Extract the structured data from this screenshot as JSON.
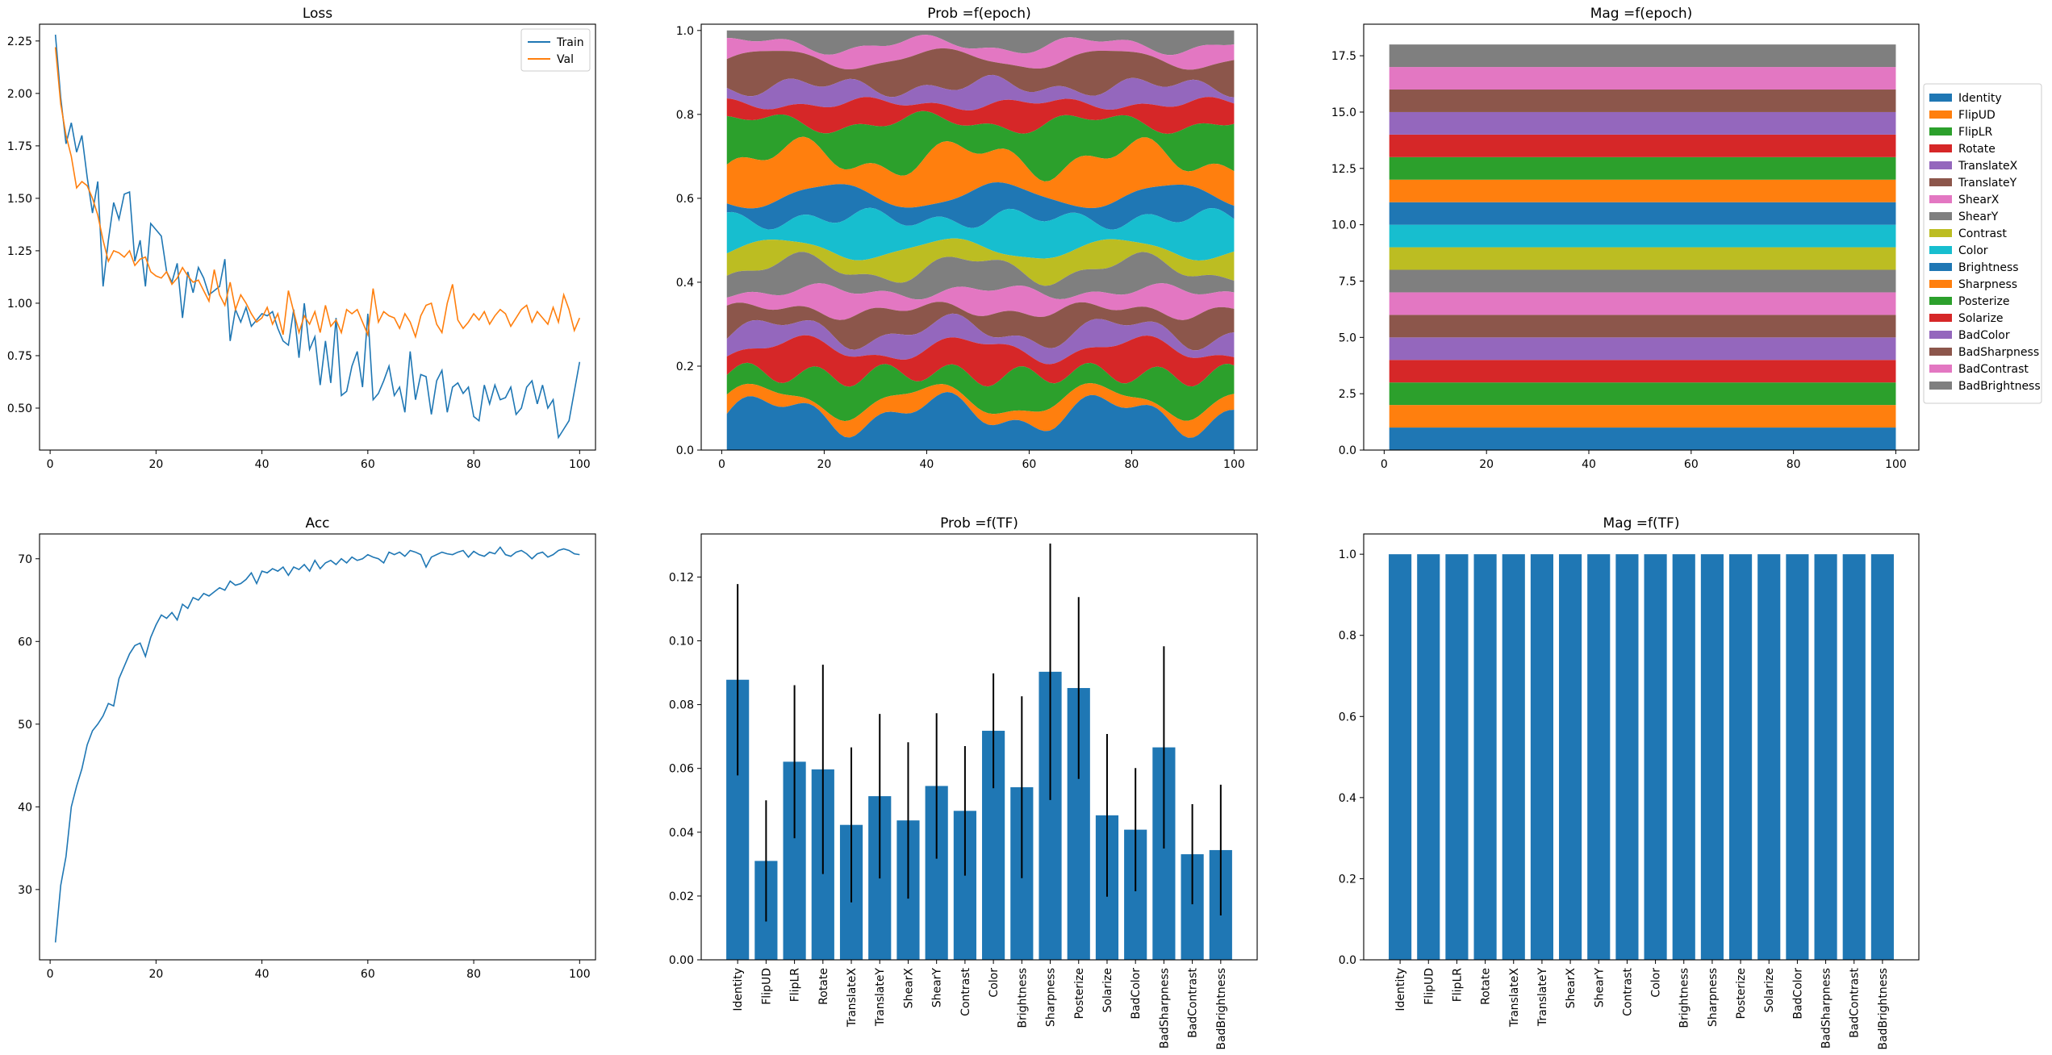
{
  "figure": {
    "colors": [
      "#1f77b4",
      "#ff7f0e",
      "#2ca02c",
      "#d62728",
      "#9467bd",
      "#8c564b",
      "#e377c2",
      "#7f7f7f",
      "#bcbd22",
      "#17becf"
    ],
    "black": "#000000"
  },
  "chart_data": [
    {
      "id": "loss",
      "type": "line",
      "title": "Loss",
      "xlim": [
        -2,
        103
      ],
      "ylim": [
        0.3,
        2.33
      ],
      "xticks": [
        0,
        20,
        40,
        60,
        80,
        100
      ],
      "yticks": [
        0.5,
        0.75,
        1.0,
        1.25,
        1.5,
        1.75,
        2.0,
        2.25
      ],
      "ytick_labels": [
        "0.50",
        "0.75",
        "1.00",
        "1.25",
        "1.50",
        "1.75",
        "2.00",
        "2.25"
      ],
      "legend": "upper right",
      "series": [
        {
          "name": "Train",
          "x_start": 1,
          "values": [
            2.28,
            1.98,
            1.76,
            1.86,
            1.72,
            1.8,
            1.6,
            1.43,
            1.58,
            1.08,
            1.3,
            1.48,
            1.4,
            1.52,
            1.53,
            1.2,
            1.3,
            1.08,
            1.38,
            1.35,
            1.32,
            1.15,
            1.1,
            1.19,
            0.93,
            1.15,
            1.05,
            1.17,
            1.12,
            1.04,
            1.06,
            1.08,
            1.21,
            0.82,
            0.97,
            0.91,
            0.98,
            0.89,
            0.92,
            0.95,
            0.94,
            0.96,
            0.88,
            0.82,
            0.8,
            0.97,
            0.74,
            1.0,
            0.78,
            0.84,
            0.61,
            0.82,
            0.62,
            0.93,
            0.56,
            0.58,
            0.7,
            0.77,
            0.6,
            0.95,
            0.54,
            0.57,
            0.63,
            0.7,
            0.56,
            0.6,
            0.48,
            0.77,
            0.54,
            0.66,
            0.65,
            0.47,
            0.63,
            0.68,
            0.48,
            0.6,
            0.62,
            0.57,
            0.6,
            0.46,
            0.44,
            0.61,
            0.52,
            0.61,
            0.54,
            0.55,
            0.6,
            0.47,
            0.5,
            0.6,
            0.63,
            0.52,
            0.61,
            0.5,
            0.54,
            0.36,
            0.4,
            0.44,
            0.58,
            0.72
          ]
        },
        {
          "name": "Val",
          "x_start": 1,
          "values": [
            2.22,
            1.95,
            1.8,
            1.7,
            1.55,
            1.58,
            1.56,
            1.5,
            1.42,
            1.3,
            1.2,
            1.25,
            1.24,
            1.22,
            1.25,
            1.18,
            1.21,
            1.22,
            1.15,
            1.13,
            1.12,
            1.15,
            1.09,
            1.12,
            1.17,
            1.13,
            1.1,
            1.11,
            1.06,
            1.01,
            1.16,
            1.04,
            0.99,
            1.1,
            0.97,
            1.04,
            1.0,
            0.95,
            0.91,
            0.93,
            0.98,
            0.9,
            0.95,
            0.85,
            1.06,
            0.96,
            0.86,
            0.94,
            0.9,
            0.96,
            0.86,
            0.99,
            0.89,
            0.92,
            0.86,
            0.97,
            0.95,
            0.97,
            0.91,
            0.85,
            1.07,
            0.91,
            0.96,
            0.94,
            0.93,
            0.88,
            0.95,
            0.91,
            0.84,
            0.94,
            0.99,
            1.0,
            0.9,
            0.86,
            1.0,
            1.09,
            0.92,
            0.88,
            0.91,
            0.95,
            0.92,
            0.96,
            0.9,
            0.94,
            0.97,
            0.95,
            0.89,
            0.93,
            0.97,
            0.99,
            0.91,
            0.96,
            0.93,
            0.9,
            0.98,
            0.91,
            1.04,
            0.97,
            0.87,
            0.93
          ]
        }
      ]
    },
    {
      "id": "acc",
      "type": "line",
      "title": "Acc",
      "xlim": [
        -2,
        103
      ],
      "ylim": [
        21.5,
        73
      ],
      "xticks": [
        0,
        20,
        40,
        60,
        80,
        100
      ],
      "yticks": [
        30,
        40,
        50,
        60,
        70
      ],
      "ytick_labels": [
        "30",
        "40",
        "50",
        "60",
        "70"
      ],
      "series": [
        {
          "name": "",
          "x_start": 1,
          "values": [
            23.6,
            30.5,
            34.0,
            40.0,
            42.5,
            44.6,
            47.5,
            49.2,
            50.0,
            51.0,
            52.5,
            52.2,
            55.5,
            57.0,
            58.5,
            59.5,
            59.8,
            58.2,
            60.5,
            62.0,
            63.2,
            62.8,
            63.5,
            62.6,
            64.5,
            64.0,
            65.3,
            65.0,
            65.8,
            65.5,
            66.0,
            66.5,
            66.2,
            67.3,
            66.8,
            67.0,
            67.5,
            68.3,
            67.0,
            68.5,
            68.3,
            68.8,
            68.5,
            69.0,
            68.0,
            69.0,
            68.7,
            69.3,
            68.5,
            69.8,
            68.8,
            69.5,
            69.8,
            69.3,
            70.0,
            69.5,
            70.2,
            69.8,
            70.0,
            70.5,
            70.2,
            70.0,
            69.5,
            70.8,
            70.5,
            70.8,
            70.3,
            71.0,
            70.8,
            70.5,
            69.0,
            70.2,
            70.5,
            70.8,
            70.6,
            70.5,
            70.8,
            71.0,
            70.2,
            70.9,
            70.5,
            70.3,
            70.8,
            70.6,
            71.4,
            70.5,
            70.3,
            70.8,
            71.0,
            70.6,
            70.0,
            70.6,
            70.8,
            70.2,
            70.5,
            71.0,
            71.2,
            71.0,
            70.6,
            70.5
          ]
        }
      ]
    },
    {
      "id": "prob_epoch",
      "type": "area",
      "title": "Prob =f(epoch)",
      "xlim": [
        -4,
        104.5
      ],
      "ylim": [
        0,
        1.015
      ],
      "xticks": [
        0,
        20,
        40,
        60,
        80,
        100
      ],
      "yticks": [
        0,
        0.2,
        0.4,
        0.6,
        0.8,
        1.0
      ],
      "ytick_labels": [
        "0.0",
        "0.2",
        "0.4",
        "0.6",
        "0.8",
        "1.0"
      ],
      "x_start": 1,
      "n_epochs": 100,
      "normalized": true,
      "series": [
        {
          "name": "Identity",
          "mean": 0.088
        },
        {
          "name": "FlipUD",
          "mean": 0.031
        },
        {
          "name": "FlipLR",
          "mean": 0.062
        },
        {
          "name": "Rotate",
          "mean": 0.06
        },
        {
          "name": "TranslateX",
          "mean": 0.042
        },
        {
          "name": "TranslateY",
          "mean": 0.051
        },
        {
          "name": "ShearX",
          "mean": 0.044
        },
        {
          "name": "ShearY",
          "mean": 0.055
        },
        {
          "name": "Contrast",
          "mean": 0.047
        },
        {
          "name": "Color",
          "mean": 0.072
        },
        {
          "name": "Brightness",
          "mean": 0.054
        },
        {
          "name": "Sharpness",
          "mean": 0.09
        },
        {
          "name": "Posterize",
          "mean": 0.085
        },
        {
          "name": "Solarize",
          "mean": 0.045
        },
        {
          "name": "BadColor",
          "mean": 0.041
        },
        {
          "name": "BadSharpness",
          "mean": 0.067
        },
        {
          "name": "BadContrast",
          "mean": 0.033
        },
        {
          "name": "BadBrightness",
          "mean": 0.034
        }
      ]
    },
    {
      "id": "mag_epoch",
      "type": "area",
      "title": "Mag =f(epoch)",
      "xlim": [
        -4,
        104.5
      ],
      "ylim": [
        0,
        18.9
      ],
      "xticks": [
        0,
        20,
        40,
        60,
        80,
        100
      ],
      "yticks": [
        0,
        2.5,
        5,
        7.5,
        10,
        12.5,
        15,
        17.5
      ],
      "ytick_labels": [
        "0.0",
        "2.5",
        "5.0",
        "7.5",
        "10.0",
        "12.5",
        "15.0",
        "17.5"
      ],
      "x_start": 1,
      "x_end": 100,
      "legend": "right outside",
      "series": [
        {
          "name": "Identity",
          "value": 1.0
        },
        {
          "name": "FlipUD",
          "value": 1.0
        },
        {
          "name": "FlipLR",
          "value": 1.0
        },
        {
          "name": "Rotate",
          "value": 1.0
        },
        {
          "name": "TranslateX",
          "value": 1.0
        },
        {
          "name": "TranslateY",
          "value": 1.0
        },
        {
          "name": "ShearX",
          "value": 1.0
        },
        {
          "name": "ShearY",
          "value": 1.0
        },
        {
          "name": "Contrast",
          "value": 1.0
        },
        {
          "name": "Color",
          "value": 1.0
        },
        {
          "name": "Brightness",
          "value": 1.0
        },
        {
          "name": "Sharpness",
          "value": 1.0
        },
        {
          "name": "Posterize",
          "value": 1.0
        },
        {
          "name": "Solarize",
          "value": 1.0
        },
        {
          "name": "BadColor",
          "value": 1.0
        },
        {
          "name": "BadSharpness",
          "value": 1.0
        },
        {
          "name": "BadContrast",
          "value": 1.0
        },
        {
          "name": "BadBrightness",
          "value": 1.0
        }
      ]
    },
    {
      "id": "prob_tf",
      "type": "bar",
      "title": "Prob =f(TF)",
      "ylim": [
        0,
        0.1335
      ],
      "yticks": [
        0,
        0.02,
        0.04,
        0.06,
        0.08,
        0.1,
        0.12
      ],
      "ytick_labels": [
        "0.00",
        "0.02",
        "0.04",
        "0.06",
        "0.08",
        "0.10",
        "0.12"
      ],
      "categories": [
        "Identity",
        "FlipUD",
        "FlipLR",
        "Rotate",
        "TranslateX",
        "TranslateY",
        "ShearX",
        "ShearY",
        "Contrast",
        "Color",
        "Brightness",
        "Sharpness",
        "Posterize",
        "Solarize",
        "BadColor",
        "BadSharpness",
        "BadContrast",
        "BadBrightness"
      ],
      "values": [
        0.0878,
        0.031,
        0.0621,
        0.0597,
        0.0423,
        0.0513,
        0.0437,
        0.0545,
        0.0467,
        0.0718,
        0.0541,
        0.0903,
        0.0852,
        0.0453,
        0.0408,
        0.0666,
        0.0331,
        0.0344
      ],
      "errors": [
        0.03,
        0.019,
        0.024,
        0.0328,
        0.0243,
        0.0258,
        0.0245,
        0.0228,
        0.0203,
        0.018,
        0.0285,
        0.0402,
        0.0285,
        0.0255,
        0.0193,
        0.0317,
        0.0157,
        0.0205
      ]
    },
    {
      "id": "mag_tf",
      "type": "bar",
      "title": "Mag =f(TF)",
      "ylim": [
        0,
        1.05
      ],
      "yticks": [
        0,
        0.2,
        0.4,
        0.6,
        0.8,
        1.0
      ],
      "ytick_labels": [
        "0.0",
        "0.2",
        "0.4",
        "0.6",
        "0.8",
        "1.0"
      ],
      "categories": [
        "Identity",
        "FlipUD",
        "FlipLR",
        "Rotate",
        "TranslateX",
        "TranslateY",
        "ShearX",
        "ShearY",
        "Contrast",
        "Color",
        "Brightness",
        "Sharpness",
        "Posterize",
        "Solarize",
        "BadColor",
        "BadSharpness",
        "BadContrast",
        "BadBrightness"
      ],
      "values": [
        1,
        1,
        1,
        1,
        1,
        1,
        1,
        1,
        1,
        1,
        1,
        1,
        1,
        1,
        1,
        1,
        1,
        1
      ]
    }
  ]
}
